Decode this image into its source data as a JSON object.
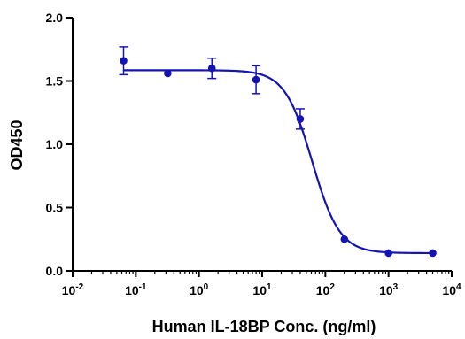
{
  "chart_data": {
    "type": "scatter",
    "xlabel": "Human IL-18BP Conc. (ng/ml)",
    "ylabel": "OD450",
    "x_scale": "log10",
    "xlim": [
      0.01,
      10000
    ],
    "ylim": [
      0,
      2.0
    ],
    "x_ticks": [
      0.01,
      0.1,
      1,
      10,
      100,
      1000,
      10000
    ],
    "x_tick_labels": [
      {
        "base": "10",
        "exp": "-2"
      },
      {
        "base": "10",
        "exp": "-1"
      },
      {
        "base": "10",
        "exp": "0"
      },
      {
        "base": "10",
        "exp": "1"
      },
      {
        "base": "10",
        "exp": "2"
      },
      {
        "base": "10",
        "exp": "3"
      },
      {
        "base": "10",
        "exp": "4"
      }
    ],
    "y_ticks": [
      0,
      0.5,
      1.0,
      1.5,
      2.0
    ],
    "y_tick_labels": [
      "0.0",
      "0.5",
      "1.0",
      "1.5",
      "2.0"
    ],
    "grid": false,
    "series": [
      {
        "color": "#1414b4",
        "points": [
          {
            "x": 0.064,
            "y": 1.66,
            "err": 0.11
          },
          {
            "x": 0.32,
            "y": 1.56,
            "err": 0
          },
          {
            "x": 1.6,
            "y": 1.6,
            "err": 0.08
          },
          {
            "x": 8.0,
            "y": 1.51,
            "err": 0.11
          },
          {
            "x": 40,
            "y": 1.2,
            "err": 0.08
          },
          {
            "x": 200,
            "y": 0.25,
            "err": 0
          },
          {
            "x": 1000,
            "y": 0.14,
            "err": 0
          },
          {
            "x": 5000,
            "y": 0.14,
            "err": 0
          }
        ],
        "fit": {
          "model": "4PL",
          "top": 1.585,
          "bottom": 0.14,
          "ec50": 62,
          "hill": 2.0,
          "x_range": [
            0.064,
            5000
          ]
        }
      }
    ]
  }
}
